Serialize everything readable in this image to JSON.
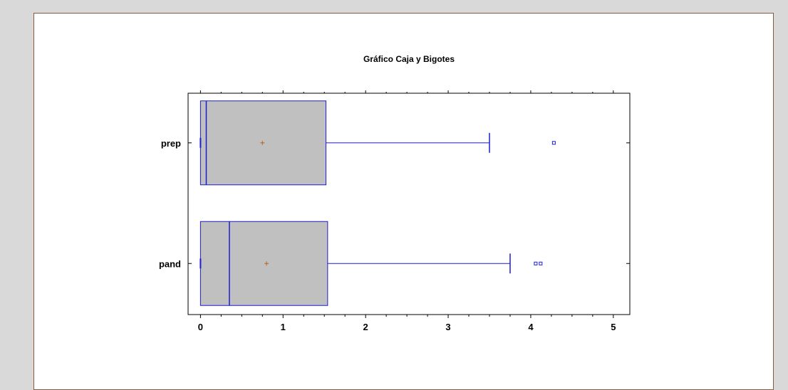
{
  "chart_data": {
    "type": "boxplot",
    "title": "Gráfico Caja y Bigotes",
    "orientation": "horizontal",
    "xlim": [
      -0.15,
      5.2
    ],
    "x_ticks": [
      0,
      1,
      2,
      3,
      4,
      5
    ],
    "x_tick_labels": [
      "0",
      "1",
      "2",
      "3",
      "4",
      "5"
    ],
    "categories": [
      "prep",
      "pand"
    ],
    "boxes": [
      {
        "category": "prep",
        "min": 0,
        "q1": 0,
        "median": 0.07,
        "q3": 1.52,
        "whisker_high": 3.5,
        "mean": 0.75,
        "outliers": [
          4.28
        ]
      },
      {
        "category": "pand",
        "min": 0,
        "q1": 0,
        "median": 0.35,
        "q3": 1.54,
        "whisker_high": 3.75,
        "mean": 0.8,
        "outliers": [
          4.06,
          4.12
        ]
      }
    ],
    "colors": {
      "box_fill": "#c0c0c0",
      "box_stroke": "#1c1cd0",
      "mean_marker": "#b5651d",
      "axis": "#000000"
    },
    "grid": false
  }
}
